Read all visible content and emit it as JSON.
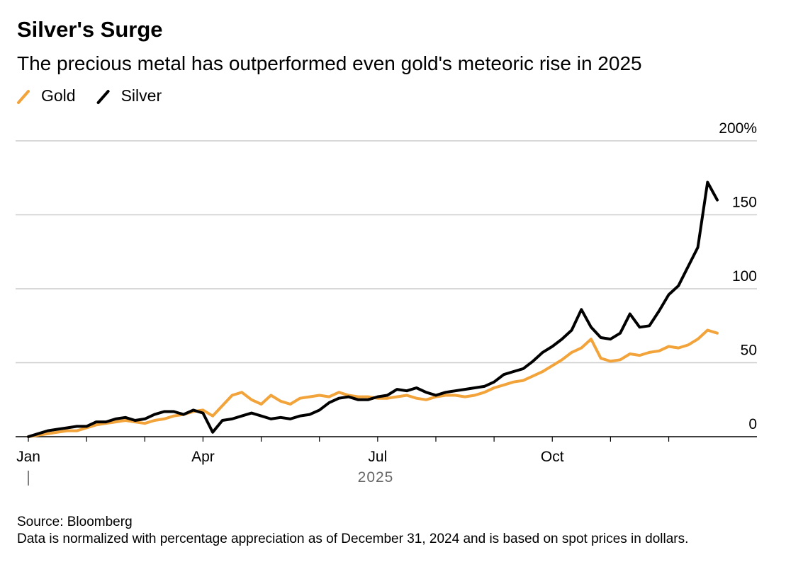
{
  "chart_data": {
    "type": "line",
    "title": "Silver's Surge",
    "subtitle": "The precious metal has outperformed even gold's meteoric rise in 2025",
    "x_label": "2025",
    "categories": [
      "Jan",
      null,
      null,
      null,
      null,
      null,
      null,
      null,
      null,
      null,
      null,
      null,
      null,
      null,
      null,
      null,
      null,
      null,
      "Apr",
      null,
      null,
      null,
      null,
      null,
      null,
      null,
      null,
      null,
      null,
      null,
      null,
      null,
      null,
      null,
      null,
      null,
      "Jul",
      null,
      null,
      null,
      null,
      null,
      null,
      null,
      null,
      null,
      null,
      null,
      null,
      null,
      null,
      null,
      null,
      null,
      "Oct",
      null,
      null,
      null,
      null,
      null,
      null,
      null,
      null,
      null,
      null,
      null,
      null,
      null,
      null,
      null,
      null,
      null
    ],
    "series": [
      {
        "name": "Gold",
        "color": "#f2a33a",
        "values": [
          0,
          1,
          2,
          3,
          4,
          4,
          6,
          8,
          9,
          10,
          11,
          10,
          9,
          11,
          12,
          14,
          15,
          17,
          18,
          14,
          21,
          28,
          30,
          25,
          22,
          28,
          24,
          22,
          26,
          27,
          28,
          27,
          30,
          28,
          27,
          27,
          26,
          26,
          27,
          28,
          26,
          25,
          27,
          28,
          28,
          27,
          28,
          30,
          33,
          35,
          37,
          38,
          41,
          44,
          48,
          52,
          57,
          60,
          66,
          53,
          51,
          52,
          56,
          55,
          57,
          58,
          61,
          60,
          62,
          66,
          72,
          70
        ]
      },
      {
        "name": "Silver",
        "color": "#000000",
        "values": [
          0,
          2,
          4,
          5,
          6,
          7,
          7,
          10,
          10,
          12,
          13,
          11,
          12,
          15,
          17,
          17,
          15,
          18,
          16,
          3,
          11,
          12,
          14,
          16,
          14,
          12,
          13,
          12,
          14,
          15,
          18,
          23,
          26,
          27,
          25,
          25,
          27,
          28,
          32,
          31,
          33,
          30,
          28,
          30,
          31,
          32,
          33,
          34,
          37,
          42,
          44,
          46,
          51,
          57,
          61,
          66,
          72,
          86,
          74,
          67,
          66,
          70,
          83,
          74,
          75,
          85,
          96,
          102,
          115,
          128,
          172,
          160
        ]
      }
    ],
    "ylim": [
      0,
      200
    ],
    "yticks": [
      0,
      50,
      100,
      150,
      {
        "value": 200,
        "label": "200%"
      }
    ],
    "grid": true,
    "legend": "top-left",
    "source": "Source: Bloomberg",
    "note": "Data is normalized with percentage appreciation as of December 31, 2024 and is based on spot prices in dollars."
  }
}
